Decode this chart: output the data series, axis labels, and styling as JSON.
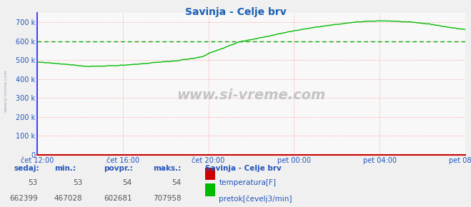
{
  "title": "Savinja - Celje brv",
  "title_color": "#1a5fb4",
  "bg_color": "#f0f0f0",
  "plot_bg_color": "#f8f8f8",
  "grid_color_h": "#ff9999",
  "grid_color_v": "#ff9999",
  "green_dashed_y": 600000,
  "ymin": 0,
  "ymax": 750000,
  "yticks": [
    0,
    100000,
    200000,
    300000,
    400000,
    500000,
    600000,
    700000
  ],
  "ytick_labels": [
    "0",
    "100 k",
    "200 k",
    "300 k",
    "400 k",
    "500 k",
    "600 k",
    "700 k"
  ],
  "xtick_labels": [
    "čet 12:00",
    "čet 16:00",
    "čet 20:00",
    "pet 00:00",
    "pet 04:00",
    "pet 08:00"
  ],
  "xtick_positions": [
    0,
    48,
    96,
    144,
    192,
    240
  ],
  "line_color_pretok": "#00bb00",
  "line_color_temp": "#cc0000",
  "temp_value": 53,
  "pretok_min": 467028,
  "pretok_max": 707958,
  "pretok_avg": 602681,
  "pretok_current": 662399,
  "temp_min": 53,
  "temp_max": 54,
  "temp_avg": 54,
  "temp_current": 53,
  "label_color": "#2255bb",
  "val_color": "#555555",
  "watermark": "www.si-vreme.com",
  "station": "Savinja - Celje brv",
  "n_points": 241,
  "left_spine_color": "#4444ff",
  "bottom_spine_color": "#cc0000"
}
